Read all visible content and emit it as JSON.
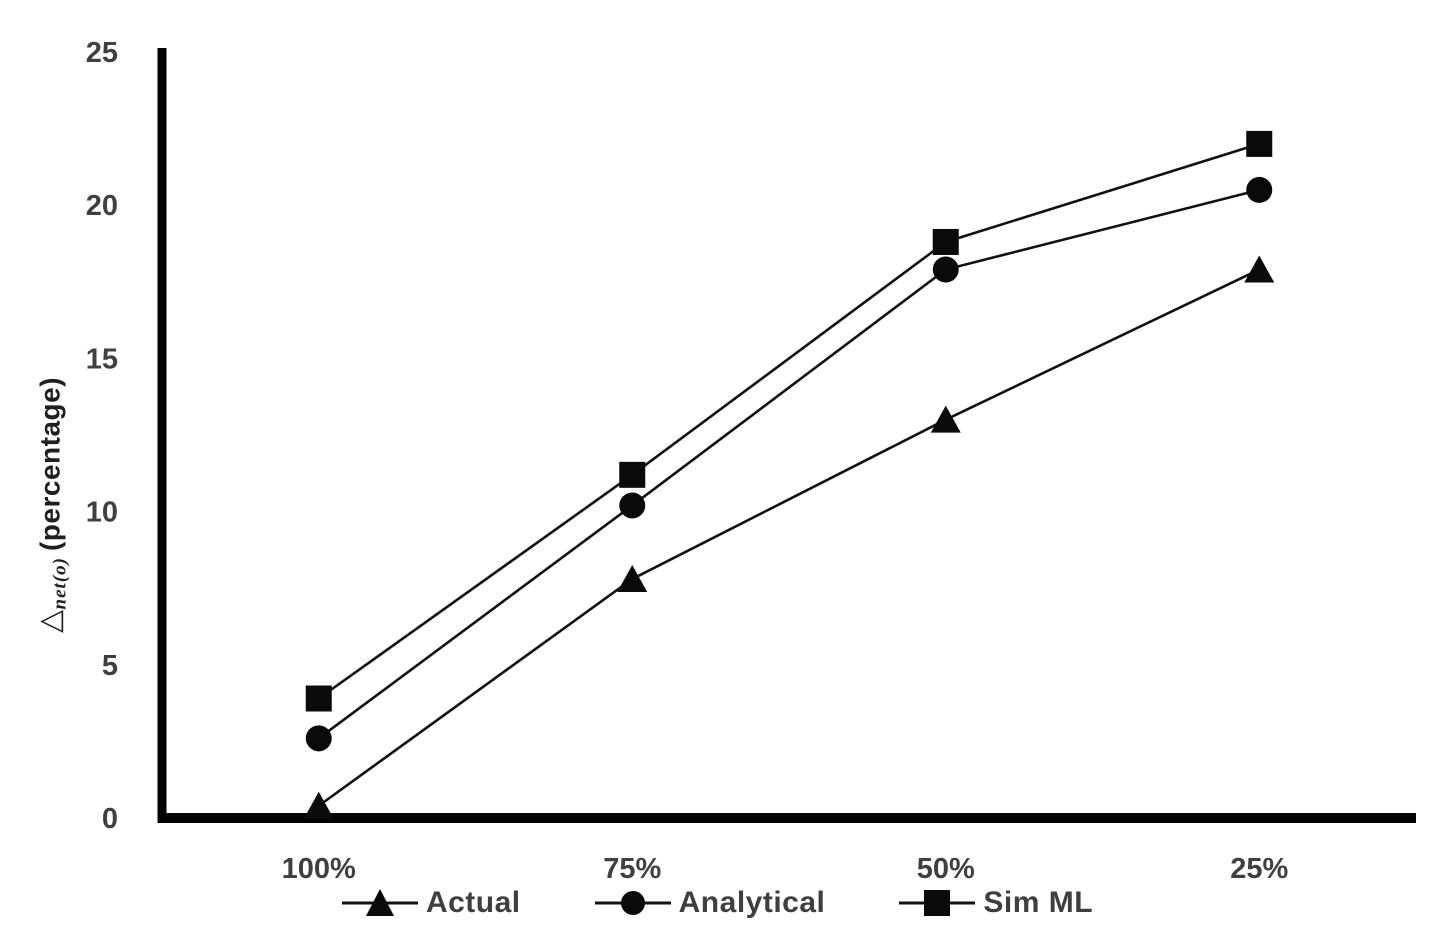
{
  "chart_data": {
    "type": "line",
    "title": "",
    "categories": [
      "100%",
      "75%",
      "50%",
      "25%"
    ],
    "series": [
      {
        "name": "Actual",
        "marker": "triangle",
        "values": [
          0.4,
          7.8,
          13.0,
          17.9
        ]
      },
      {
        "name": "Analytical",
        "marker": "circle",
        "values": [
          2.6,
          10.2,
          17.9,
          20.5
        ]
      },
      {
        "name": "Sim ML",
        "marker": "square",
        "values": [
          3.9,
          11.2,
          18.8,
          22.0
        ]
      }
    ],
    "xlabel": "",
    "ylabel": "△net(o) (percentage)",
    "ylim": [
      0,
      25
    ],
    "yticks": [
      0,
      5,
      10,
      15,
      20,
      25
    ],
    "grid": false,
    "legend_position": "bottom",
    "colors": {
      "line": "#111111",
      "marker": "#0a0a0a",
      "axis": "#000000",
      "tick_label": "#404040",
      "background": "#ffffff"
    }
  },
  "y_title": {
    "delta": "△",
    "subscript": "net(o)",
    "rest": "(percentage)"
  }
}
